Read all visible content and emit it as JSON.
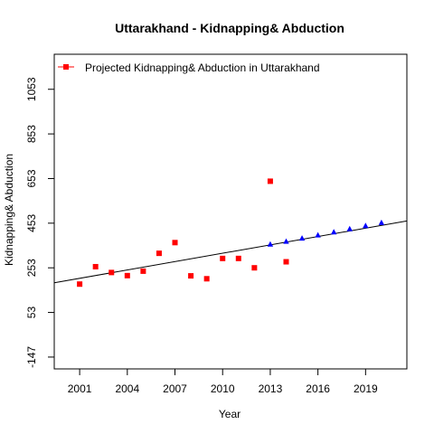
{
  "chart_data": {
    "type": "scatter",
    "title": "Uttarakhand  -  Kidnapping& Abduction",
    "xlabel": "Year",
    "ylabel": "Kidnapping& Abduction",
    "xlim": [
      1999.4,
      2021.6
    ],
    "ylim": [
      -200,
      1210
    ],
    "x_ticks": [
      2001,
      2004,
      2007,
      2010,
      2013,
      2016,
      2019
    ],
    "y_ticks": [
      -147,
      53,
      253,
      453,
      653,
      853,
      1053
    ],
    "grid": false,
    "legend_position": "top-left",
    "legend_label": "Projected  Kidnapping& Abduction  in  Uttarakhand",
    "series": [
      {
        "marker": "square",
        "color": "#ff0000",
        "points": [
          [
            2001,
            180
          ],
          [
            2002,
            258
          ],
          [
            2003,
            232
          ],
          [
            2004,
            218
          ],
          [
            2005,
            238
          ],
          [
            2006,
            318
          ],
          [
            2007,
            366
          ],
          [
            2008,
            217
          ],
          [
            2009,
            204
          ],
          [
            2010,
            295
          ],
          [
            2011,
            295
          ],
          [
            2012,
            253
          ],
          [
            2013,
            641
          ],
          [
            2014,
            280
          ]
        ]
      },
      {
        "marker": "triangle",
        "color": "#0000ff",
        "points": [
          [
            2013,
            358
          ],
          [
            2014,
            371
          ],
          [
            2015,
            385
          ],
          [
            2016,
            399
          ],
          [
            2017,
            413
          ],
          [
            2018,
            427
          ],
          [
            2019,
            441
          ],
          [
            2020,
            455
          ]
        ]
      }
    ],
    "trend_line": {
      "color": "#000000",
      "x": [
        1999.4,
        2021.6
      ],
      "y": [
        186,
        463
      ]
    }
  }
}
